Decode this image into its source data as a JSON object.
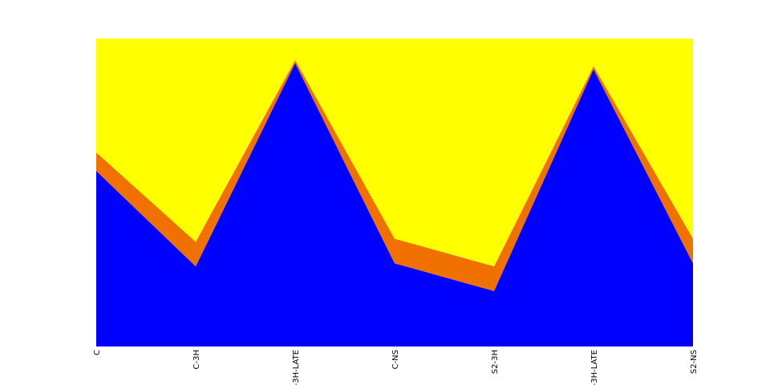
{
  "chart_data": {
    "type": "area",
    "stacked": true,
    "normalized": true,
    "categories": [
      "C",
      "C-3H",
      "S1-3H-LATE",
      "C-NS",
      "S2-3H",
      "S2-3H-LATE",
      "S2-NS"
    ],
    "ylim": [
      0,
      1
    ],
    "grid": false,
    "axes_visible": false,
    "series": [
      {
        "color": "#0000ff",
        "values": [
          0.57,
          0.26,
          0.92,
          0.27,
          0.18,
          0.9,
          0.27
        ]
      },
      {
        "color": "#f07000",
        "values": [
          0.06,
          0.08,
          0.01,
          0.08,
          0.08,
          0.01,
          0.08
        ]
      },
      {
        "color": "#ffff00",
        "values": [
          0.37,
          0.66,
          0.07,
          0.65,
          0.74,
          0.09,
          0.65
        ]
      }
    ]
  }
}
